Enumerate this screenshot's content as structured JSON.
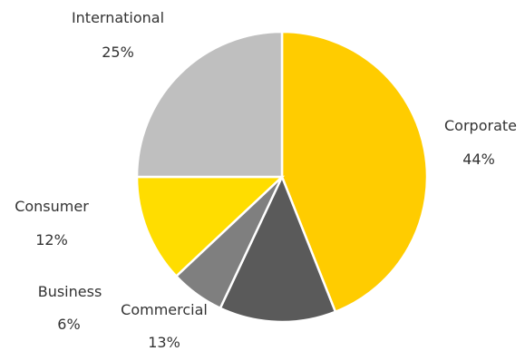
{
  "chart_data": {
    "type": "pie",
    "slices": [
      {
        "label": "Corporate",
        "value": 44,
        "value_label": "44%",
        "color": "#ffcc00"
      },
      {
        "label": "Commercial",
        "value": 13,
        "value_label": "13%",
        "color": "#5a5a5a"
      },
      {
        "label": "Business",
        "value": 6,
        "value_label": "6%",
        "color": "#7f7f7f"
      },
      {
        "label": "Consumer",
        "value": 12,
        "value_label": "12%",
        "color": "#ffdd00"
      },
      {
        "label": "International",
        "value": 25,
        "value_label": "25%",
        "color": "#bfbfbf"
      }
    ],
    "start": "12 o'clock",
    "direction": "clockwise",
    "legend": "none"
  }
}
